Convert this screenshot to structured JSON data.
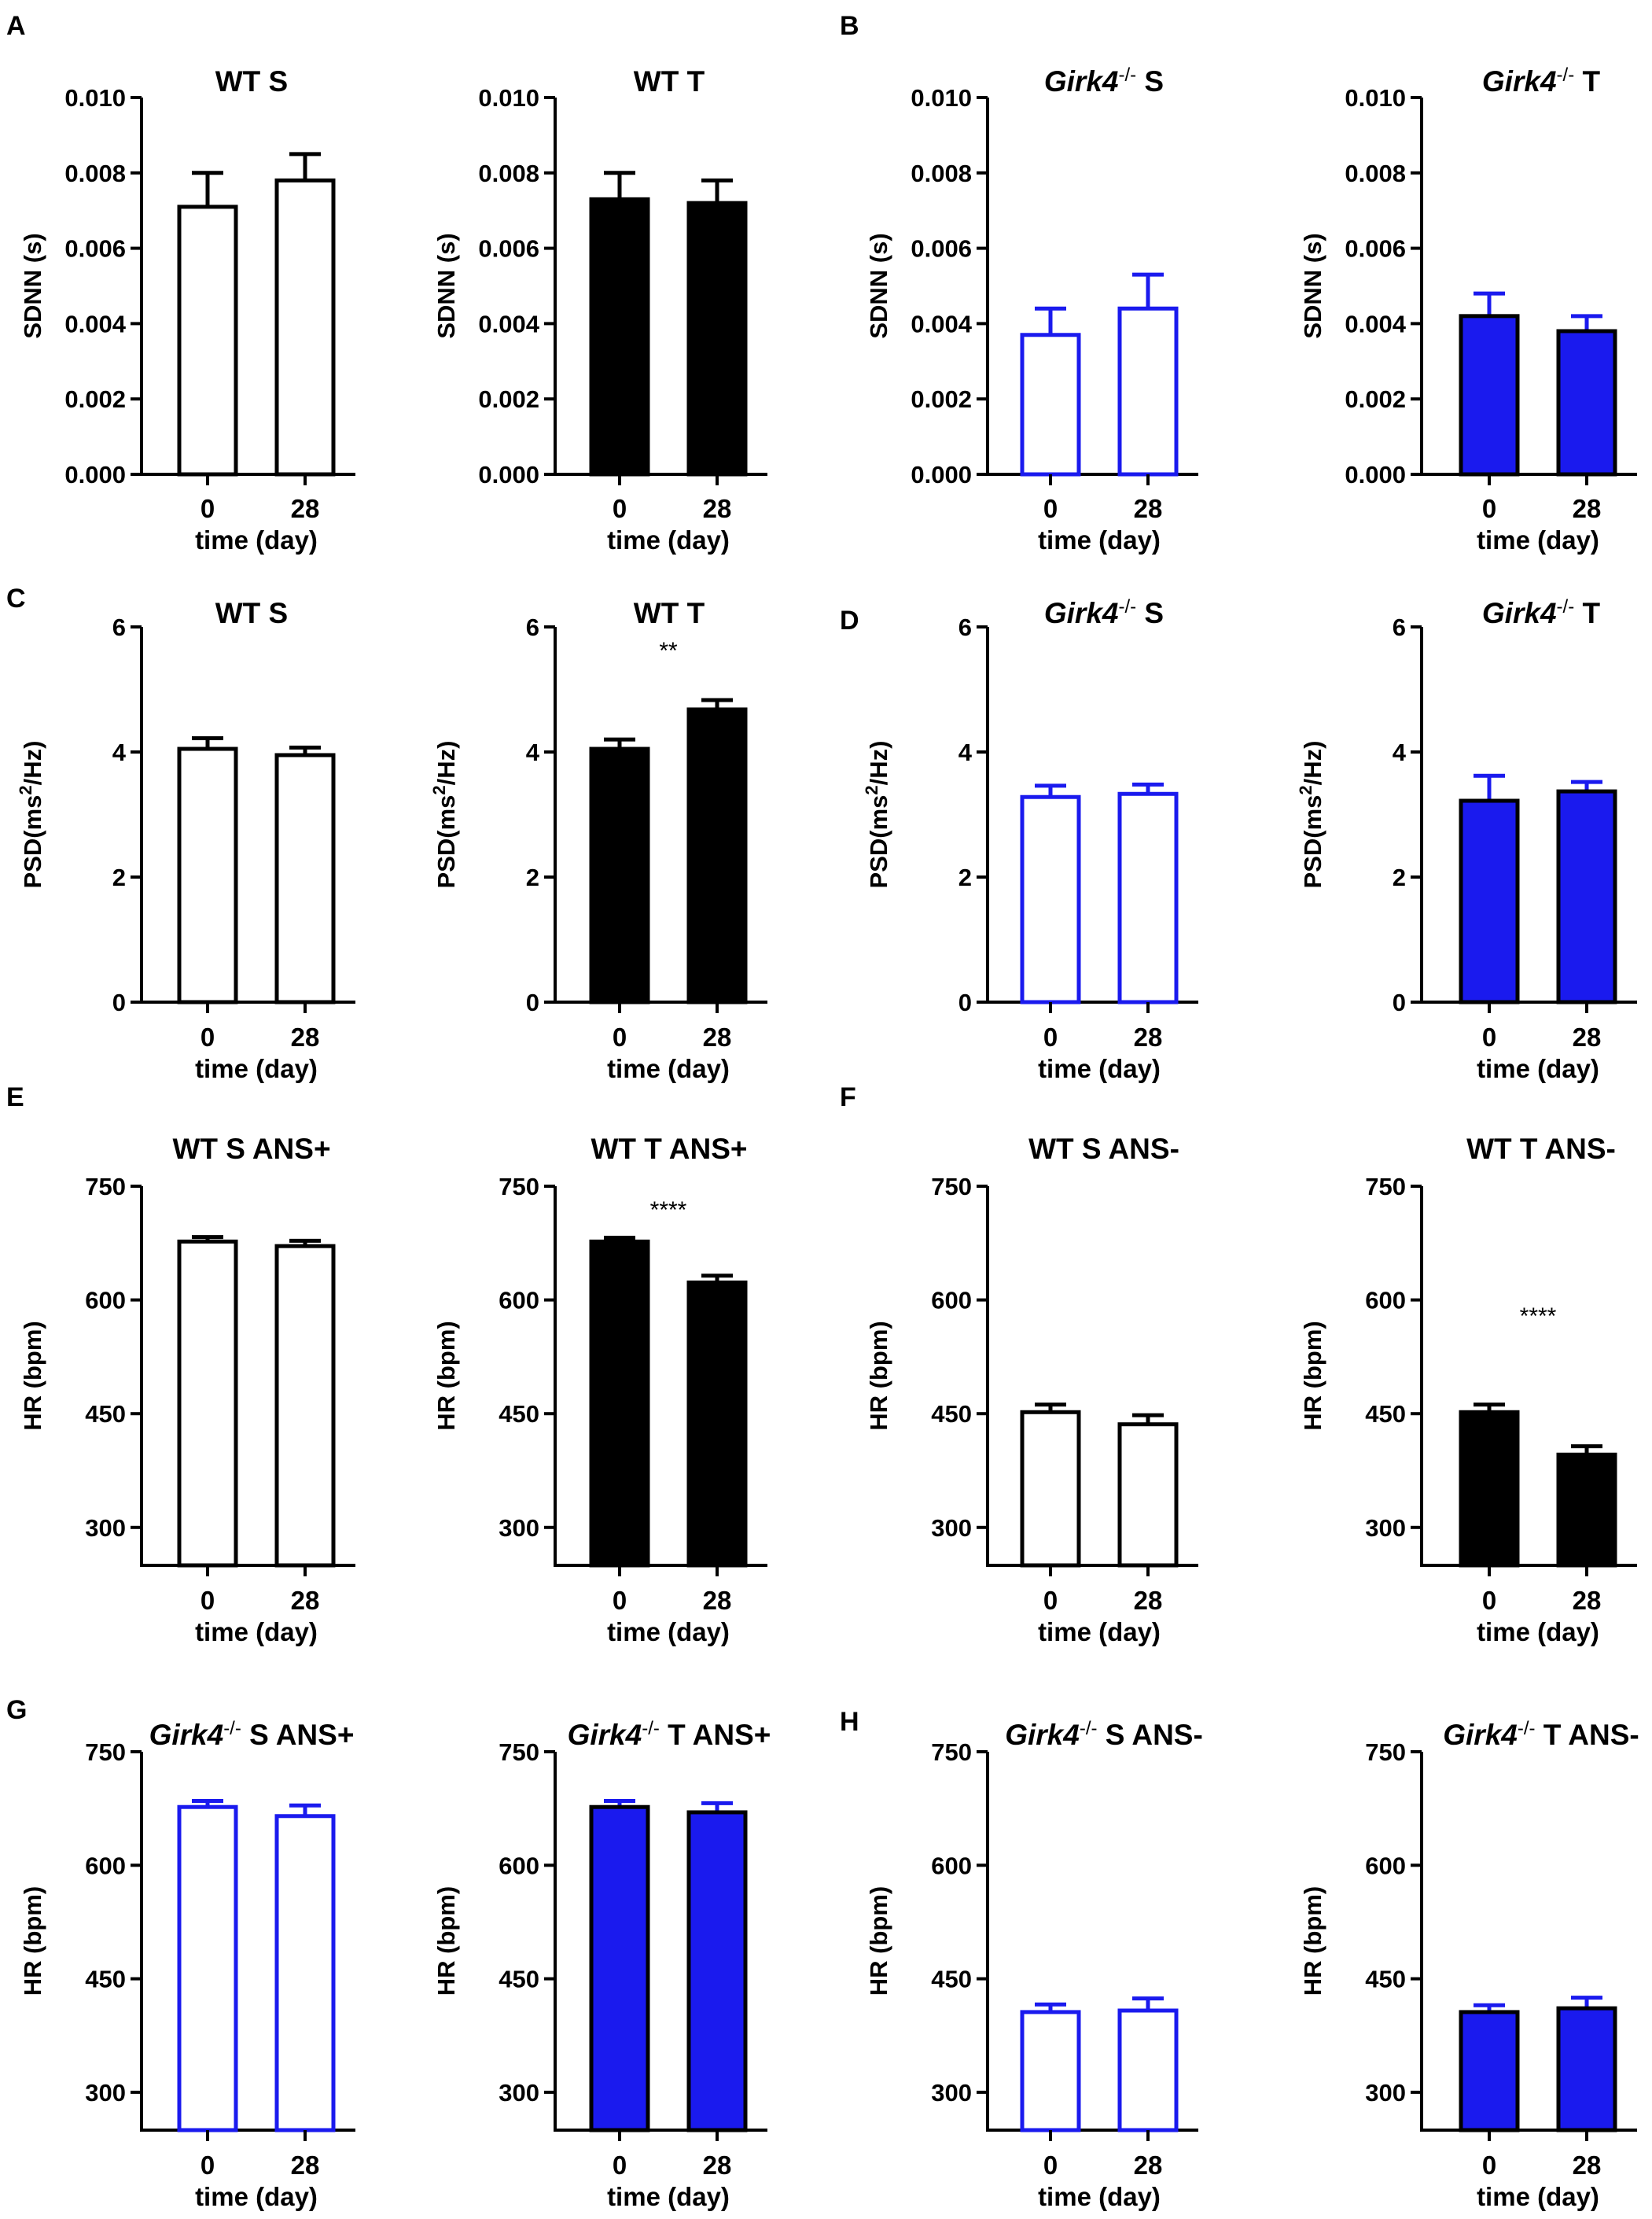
{
  "figure": {
    "panel_letters": [
      "A",
      "B",
      "C",
      "D",
      "E",
      "F",
      "G",
      "H"
    ]
  },
  "colors": {
    "black": "#000000",
    "blue": "#1a1aee",
    "white": "#ffffff"
  },
  "chart_data": [
    {
      "type": "bar",
      "title": "WT S",
      "xlabel": "time (day)",
      "ylabel": "SDNN (s)",
      "categories": [
        "0",
        "28"
      ],
      "values": [
        0.0071,
        0.0078
      ],
      "errors": [
        0.0009,
        0.0007
      ],
      "ylim": [
        0,
        0.01
      ],
      "yticks": [
        "0.000",
        "0.002",
        "0.004",
        "0.006",
        "0.008",
        "0.010"
      ],
      "style": "open",
      "color": "black",
      "significance": ""
    },
    {
      "type": "bar",
      "title": "WT T",
      "xlabel": "time (day)",
      "ylabel": "SDNN (s)",
      "categories": [
        "0",
        "28"
      ],
      "values": [
        0.0073,
        0.0072
      ],
      "errors": [
        0.0007,
        0.0006
      ],
      "ylim": [
        0,
        0.01
      ],
      "yticks": [
        "0.000",
        "0.002",
        "0.004",
        "0.006",
        "0.008",
        "0.010"
      ],
      "style": "filled",
      "color": "black",
      "significance": ""
    },
    {
      "type": "bar",
      "title": "Girk4",
      "title_sup": "-/-",
      "title_rest": " S",
      "xlabel": "time (day)",
      "ylabel": "SDNN (s)",
      "categories": [
        "0",
        "28"
      ],
      "values": [
        0.0037,
        0.0044
      ],
      "errors": [
        0.0007,
        0.0009
      ],
      "ylim": [
        0,
        0.01
      ],
      "yticks": [
        "0.000",
        "0.002",
        "0.004",
        "0.006",
        "0.008",
        "0.010"
      ],
      "style": "open",
      "color": "blue",
      "significance": ""
    },
    {
      "type": "bar",
      "title": "Girk4",
      "title_sup": "-/-",
      "title_rest": " T",
      "xlabel": "time (day)",
      "ylabel": "SDNN (s)",
      "categories": [
        "0",
        "28"
      ],
      "values": [
        0.0042,
        0.0038
      ],
      "errors": [
        0.0006,
        0.0004
      ],
      "ylim": [
        0,
        0.01
      ],
      "yticks": [
        "0.000",
        "0.002",
        "0.004",
        "0.006",
        "0.008",
        "0.010"
      ],
      "style": "filled",
      "color": "blue",
      "significance": ""
    },
    {
      "type": "bar",
      "title": "WT S",
      "xlabel": "time (day)",
      "ylabel": "PSD(ms",
      "ylabel_sup": "2",
      "ylabel_rest": "/Hz)",
      "categories": [
        "0",
        "28"
      ],
      "values": [
        4.05,
        3.95
      ],
      "errors": [
        0.17,
        0.12
      ],
      "ylim": [
        0,
        6
      ],
      "yticks": [
        "0",
        "2",
        "4",
        "6"
      ],
      "style": "open",
      "color": "black",
      "significance": ""
    },
    {
      "type": "bar",
      "title": "WT T",
      "xlabel": "time (day)",
      "ylabel": "PSD(ms",
      "ylabel_sup": "2",
      "ylabel_rest": "/Hz)",
      "categories": [
        "0",
        "28"
      ],
      "values": [
        4.05,
        4.68
      ],
      "errors": [
        0.15,
        0.15
      ],
      "ylim": [
        0,
        6
      ],
      "yticks": [
        "0",
        "2",
        "4",
        "6"
      ],
      "style": "filled",
      "color": "black",
      "significance": "**"
    },
    {
      "type": "bar",
      "title": "Girk4",
      "title_sup": "-/-",
      "title_rest": " S",
      "xlabel": "time (day)",
      "ylabel": "PSD(ms",
      "ylabel_sup": "2",
      "ylabel_rest": "/Hz)",
      "categories": [
        "0",
        "28"
      ],
      "values": [
        3.28,
        3.33
      ],
      "errors": [
        0.18,
        0.15
      ],
      "ylim": [
        0,
        6
      ],
      "yticks": [
        "0",
        "2",
        "4",
        "6"
      ],
      "style": "open",
      "color": "blue",
      "significance": ""
    },
    {
      "type": "bar",
      "title": "Girk4",
      "title_sup": "-/-",
      "title_rest": " T",
      "xlabel": "time (day)",
      "ylabel": "PSD(ms",
      "ylabel_sup": "2",
      "ylabel_rest": "/Hz)",
      "categories": [
        "0",
        "28"
      ],
      "values": [
        3.22,
        3.37
      ],
      "errors": [
        0.4,
        0.15
      ],
      "ylim": [
        0,
        6
      ],
      "yticks": [
        "0",
        "2",
        "4",
        "6"
      ],
      "style": "filled",
      "color": "blue",
      "significance": ""
    },
    {
      "type": "bar",
      "title": "WT S ANS+",
      "xlabel": "time (day)",
      "ylabel": "HR (bpm)",
      "categories": [
        "0",
        "28"
      ],
      "values": [
        677,
        671
      ],
      "errors": [
        6,
        7
      ],
      "ylim": [
        250,
        750
      ],
      "yticks": [
        "300",
        "450",
        "600",
        "750"
      ],
      "style": "open",
      "color": "black",
      "significance": ""
    },
    {
      "type": "bar",
      "title": "WT T ANS+",
      "xlabel": "time (day)",
      "ylabel": "HR (bpm)",
      "categories": [
        "0",
        "28"
      ],
      "values": [
        677,
        623
      ],
      "errors": [
        5,
        9
      ],
      "ylim": [
        250,
        750
      ],
      "yticks": [
        "300",
        "450",
        "600",
        "750"
      ],
      "style": "filled",
      "color": "black",
      "significance": "****"
    },
    {
      "type": "bar",
      "title": "WT S ANS-",
      "xlabel": "time (day)",
      "ylabel": "HR (bpm)",
      "categories": [
        "0",
        "28"
      ],
      "values": [
        452,
        436
      ],
      "errors": [
        10,
        12
      ],
      "ylim": [
        250,
        750
      ],
      "yticks": [
        "300",
        "450",
        "600",
        "750"
      ],
      "style": "open",
      "color": "black",
      "significance": ""
    },
    {
      "type": "bar",
      "title": "WT T ANS-",
      "xlabel": "time (day)",
      "ylabel": "HR (bpm)",
      "categories": [
        "0",
        "28"
      ],
      "values": [
        452,
        396
      ],
      "errors": [
        10,
        11
      ],
      "ylim": [
        250,
        750
      ],
      "yticks": [
        "300",
        "450",
        "600",
        "750"
      ],
      "style": "filled",
      "color": "black",
      "significance": "****"
    },
    {
      "type": "bar",
      "title": "Girk4",
      "title_sup": "-/-",
      "title_rest": " S ANS+",
      "xlabel": "time (day)",
      "ylabel": "HR (bpm)",
      "categories": [
        "0",
        "28"
      ],
      "values": [
        677,
        665
      ],
      "errors": [
        8,
        14
      ],
      "ylim": [
        250,
        750
      ],
      "yticks": [
        "300",
        "450",
        "600",
        "750"
      ],
      "style": "open",
      "color": "blue",
      "significance": ""
    },
    {
      "type": "bar",
      "title": "Girk4",
      "title_sup": "-/-",
      "title_rest": " T ANS+",
      "xlabel": "time (day)",
      "ylabel": "HR (bpm)",
      "categories": [
        "0",
        "28"
      ],
      "values": [
        677,
        670
      ],
      "errors": [
        8,
        12
      ],
      "ylim": [
        250,
        750
      ],
      "yticks": [
        "300",
        "450",
        "600",
        "750"
      ],
      "style": "filled",
      "color": "blue",
      "significance": ""
    },
    {
      "type": "bar",
      "title": "Girk4",
      "title_sup": "-/-",
      "title_rest": " S ANS-",
      "xlabel": "time (day)",
      "ylabel": "HR (bpm)",
      "categories": [
        "0",
        "28"
      ],
      "values": [
        406,
        408
      ],
      "errors": [
        10,
        16
      ],
      "ylim": [
        250,
        750
      ],
      "yticks": [
        "300",
        "450",
        "600",
        "750"
      ],
      "style": "open",
      "color": "blue",
      "significance": ""
    },
    {
      "type": "bar",
      "title": "Girk4",
      "title_sup": "-/-",
      "title_rest": " T ANS-",
      "xlabel": "time (day)",
      "ylabel": "HR (bpm)",
      "categories": [
        "0",
        "28"
      ],
      "values": [
        406,
        411
      ],
      "errors": [
        9,
        14
      ],
      "ylim": [
        250,
        750
      ],
      "yticks": [
        "300",
        "450",
        "600",
        "750"
      ],
      "style": "filled",
      "color": "blue",
      "significance": ""
    }
  ]
}
